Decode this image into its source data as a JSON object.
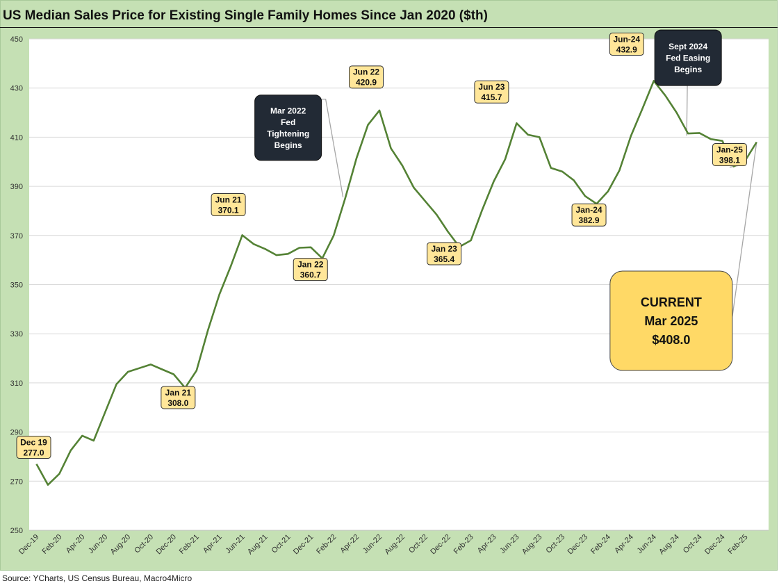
{
  "title": "US Median Sales Price for Existing Single Family Homes Since Jan 2020 ($th)",
  "source": "Source: YCharts, US Census Bureau, Macro4Micro",
  "colors": {
    "line": "#548235",
    "callout_fill": "#ffe699",
    "callout_stroke": "#333333",
    "event_fill": "#222a35",
    "current_fill": "#ffd966",
    "plot_bg": "#ffffff",
    "frame_bg": "#c5e0b4"
  },
  "chart_data": {
    "type": "line",
    "title": "US Median Sales Price for Existing Single Family Homes Since Jan 2020 ($th)",
    "ylim": [
      250,
      450
    ],
    "yticks": [
      250,
      270,
      290,
      310,
      330,
      350,
      370,
      390,
      410,
      430,
      450
    ],
    "grid": true,
    "x_tick_labels": [
      "Dec-19",
      "Feb-20",
      "Apr-20",
      "Jun-20",
      "Aug-20",
      "Oct-20",
      "Dec-20",
      "Feb-21",
      "Apr-21",
      "Jun-21",
      "Aug-21",
      "Oct-21",
      "Dec-21",
      "Feb-22",
      "Apr-22",
      "Jun-22",
      "Aug-22",
      "Oct-22",
      "Dec-22",
      "Feb-23",
      "Apr-23",
      "Jun-23",
      "Aug-23",
      "Oct-23",
      "Dec-23",
      "Feb-24",
      "Apr-24",
      "Jun-24",
      "Aug-24",
      "Oct-24",
      "Dec-24",
      "Feb-25"
    ],
    "x": [
      "Dec-19",
      "Jan-20",
      "Feb-20",
      "Mar-20",
      "Apr-20",
      "May-20",
      "Jun-20",
      "Jul-20",
      "Aug-20",
      "Sep-20",
      "Oct-20",
      "Nov-20",
      "Dec-20",
      "Jan-21",
      "Feb-21",
      "Mar-21",
      "Apr-21",
      "May-21",
      "Jun-21",
      "Jul-21",
      "Aug-21",
      "Sep-21",
      "Oct-21",
      "Nov-21",
      "Dec-21",
      "Jan-22",
      "Feb-22",
      "Mar-22",
      "Apr-22",
      "May-22",
      "Jun-22",
      "Jul-22",
      "Aug-22",
      "Sep-22",
      "Oct-22",
      "Nov-22",
      "Dec-22",
      "Jan-23",
      "Feb-23",
      "Mar-23",
      "Apr-23",
      "May-23",
      "Jun-23",
      "Jul-23",
      "Aug-23",
      "Sep-23",
      "Oct-23",
      "Nov-23",
      "Dec-23",
      "Jan-24",
      "Feb-24",
      "Mar-24",
      "Apr-24",
      "May-24",
      "Jun-24",
      "Jul-24",
      "Aug-24",
      "Sep-24",
      "Oct-24",
      "Nov-24",
      "Dec-24",
      "Jan-25",
      "Feb-25",
      "Mar-25"
    ],
    "series": [
      {
        "values": [
          277.0,
          268.5,
          273.0,
          282.5,
          288.5,
          286.5,
          298.0,
          309.5,
          314.5,
          316.0,
          317.5,
          315.5,
          313.5,
          308.0,
          315.0,
          331.5,
          346.0,
          357.5,
          370.1,
          366.5,
          364.5,
          362.0,
          362.5,
          365.0,
          365.2,
          360.7,
          370.0,
          385.0,
          401.5,
          415.0,
          420.9,
          405.5,
          398.5,
          389.5,
          384.0,
          378.5,
          371.5,
          365.4,
          368.0,
          380.5,
          392.0,
          401.0,
          415.7,
          411.0,
          410.0,
          397.5,
          396.0,
          392.5,
          386.0,
          382.9,
          388.0,
          396.5,
          410.5,
          421.5,
          432.9,
          427.0,
          420.0,
          411.5,
          411.7,
          409.2,
          408.5,
          398.1,
          400.5,
          408.0
        ]
      }
    ],
    "callouts": [
      {
        "index": 0,
        "lines": [
          "Dec 19",
          "277.0"
        ]
      },
      {
        "index": 13,
        "lines": [
          "Jan 21",
          "308.0"
        ]
      },
      {
        "index": 18,
        "lines": [
          "Jun 21",
          "370.1"
        ]
      },
      {
        "index": 25,
        "lines": [
          "Jan 22",
          "360.7"
        ]
      },
      {
        "index": 30,
        "lines": [
          "Jun 22",
          "420.9"
        ]
      },
      {
        "index": 37,
        "lines": [
          "Jan 23",
          "365.4"
        ]
      },
      {
        "index": 42,
        "lines": [
          "Jun 23",
          "415.7"
        ]
      },
      {
        "index": 49,
        "lines": [
          "Jan-24",
          "382.9"
        ]
      },
      {
        "index": 54,
        "lines": [
          "Jun-24",
          "432.9"
        ]
      },
      {
        "index": 61,
        "lines": [
          "Jan-25",
          "398.1"
        ]
      }
    ],
    "annotations": [
      {
        "index": 27,
        "lines": [
          "Mar 2022",
          "Fed",
          "Tightening",
          "Begins"
        ]
      },
      {
        "index": 57,
        "lines": [
          "Sept 2024",
          "Fed Easing",
          "Begins"
        ]
      }
    ],
    "current": {
      "index": 63,
      "lines": [
        "CURRENT",
        "Mar 2025",
        "$408.0"
      ]
    }
  }
}
